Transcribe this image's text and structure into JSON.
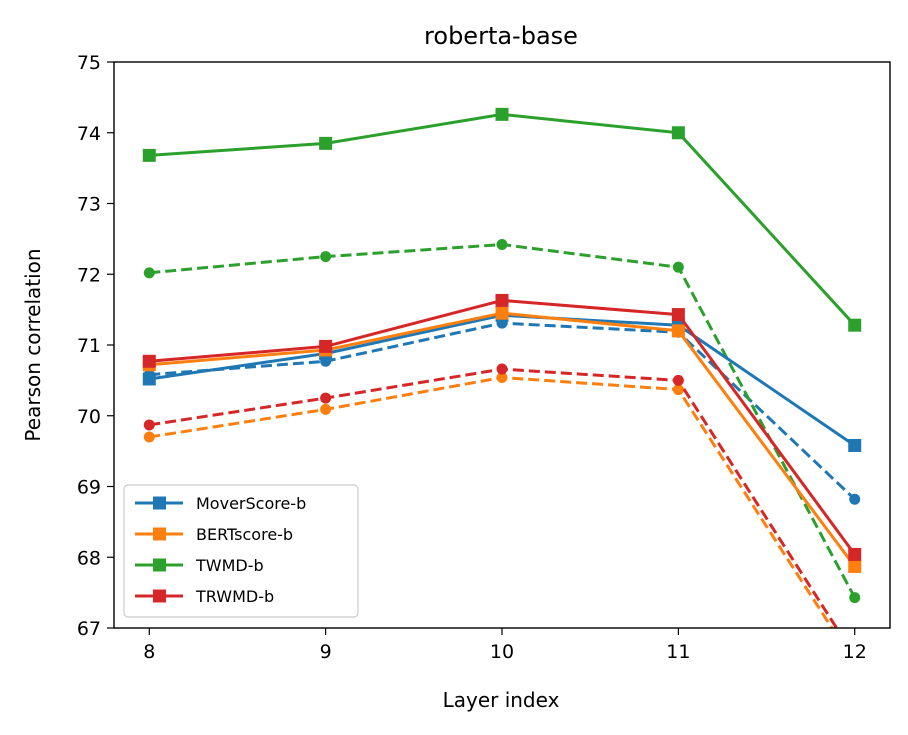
{
  "chart_data": {
    "type": "line",
    "title": "roberta-base",
    "xlabel": "Layer index",
    "ylabel": "Pearson correlation",
    "x": [
      8,
      9,
      10,
      11,
      12
    ],
    "xticks": [
      "8",
      "9",
      "10",
      "11",
      "12"
    ],
    "yticks": [
      "67",
      "68",
      "69",
      "70",
      "71",
      "72",
      "73",
      "74",
      "75"
    ],
    "xlim": [
      7.8,
      12.2
    ],
    "ylim": [
      67,
      75
    ],
    "grid": false,
    "legend_position": "lower-left",
    "series": [
      {
        "name": "MoverScore-b",
        "color": "#1f77b4",
        "style": "solid",
        "marker": "square",
        "legend": true,
        "values": [
          70.52,
          70.88,
          71.42,
          71.28,
          69.58
        ]
      },
      {
        "name": "BERTscore-b",
        "color": "#ff7f0e",
        "style": "solid",
        "marker": "square",
        "legend": true,
        "values": [
          70.72,
          70.93,
          71.45,
          71.2,
          67.87
        ]
      },
      {
        "name": "TWMD-b",
        "color": "#2ca02c",
        "style": "solid",
        "marker": "square",
        "legend": true,
        "values": [
          73.68,
          73.85,
          74.26,
          74.0,
          71.28
        ]
      },
      {
        "name": "TRWMD-b",
        "color": "#d62728",
        "style": "solid",
        "marker": "square",
        "legend": true,
        "values": [
          70.77,
          70.98,
          71.63,
          71.43,
          68.04
        ]
      },
      {
        "color": "#1f77b4",
        "style": "dashed",
        "marker": "circle",
        "legend": false,
        "values": [
          70.58,
          70.77,
          71.31,
          71.18,
          68.82
        ]
      },
      {
        "color": "#ff7f0e",
        "style": "dashed",
        "marker": "circle",
        "legend": false,
        "values": [
          69.7,
          70.09,
          70.54,
          70.37,
          66.5
        ]
      },
      {
        "color": "#2ca02c",
        "style": "dashed",
        "marker": "circle",
        "legend": false,
        "values": [
          72.02,
          72.25,
          72.42,
          72.1,
          67.43
        ]
      },
      {
        "color": "#d62728",
        "style": "dashed",
        "marker": "circle",
        "legend": false,
        "values": [
          69.87,
          70.25,
          70.66,
          70.5,
          66.6
        ]
      }
    ]
  }
}
